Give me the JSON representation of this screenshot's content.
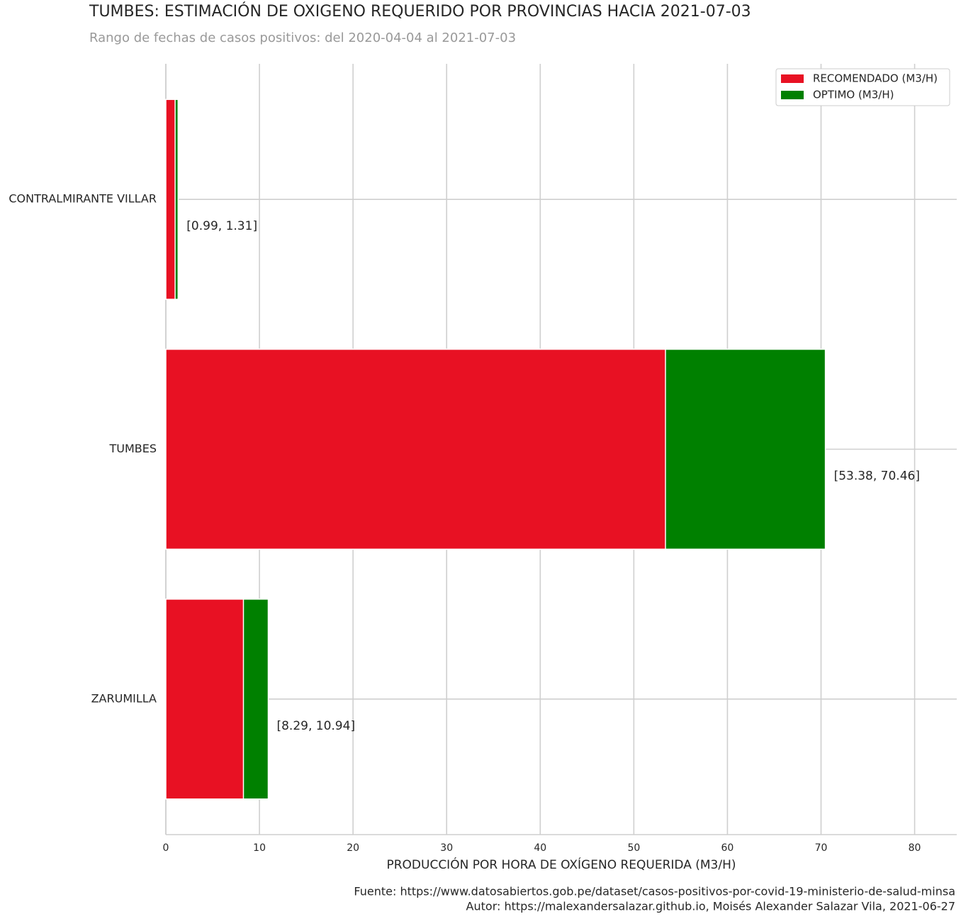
{
  "chart_data": {
    "type": "bar",
    "orientation": "horizontal",
    "title": "TUMBES: ESTIMACIÓN DE OXIGENO REQUERIDO POR PROVINCIAS HACIA 2021-07-03",
    "subtitle": "Rango de fechas de casos positivos: del 2020-04-04 al 2021-07-03",
    "x_label": "PRODUCCIÓN POR HORA DE OXÍGENO REQUERIDA (M3/H)",
    "categories": [
      "CONTRALMIRANTE VILLAR",
      "TUMBES",
      "ZARUMILLA"
    ],
    "series": [
      {
        "name": "OPTIMO (M3/H)",
        "color": "#008000",
        "values": [
          1.31,
          70.46,
          10.94
        ]
      },
      {
        "name": "RECOMENDADO (M3/H)",
        "color": "#e81123",
        "values": [
          0.99,
          53.38,
          8.29
        ]
      }
    ],
    "value_labels": [
      "[0.99, 1.31]",
      "[53.38, 70.46]",
      "[8.29, 10.94]"
    ],
    "legend_order": [
      1,
      0
    ],
    "legend_position": "upper right",
    "xlim": [
      0,
      84.5
    ],
    "xticks": [
      0,
      10,
      20,
      30,
      40,
      50,
      60,
      70,
      80
    ],
    "grid": true,
    "notes": [
      "Fuente: https://www.datosabiertos.gob.pe/dataset/casos-positivos-por-covid-19-ministerio-de-salud-minsa",
      "Autor: https://malexandersalazar.github.io, Moisés Alexander Salazar Vila, 2021-06-27"
    ]
  }
}
